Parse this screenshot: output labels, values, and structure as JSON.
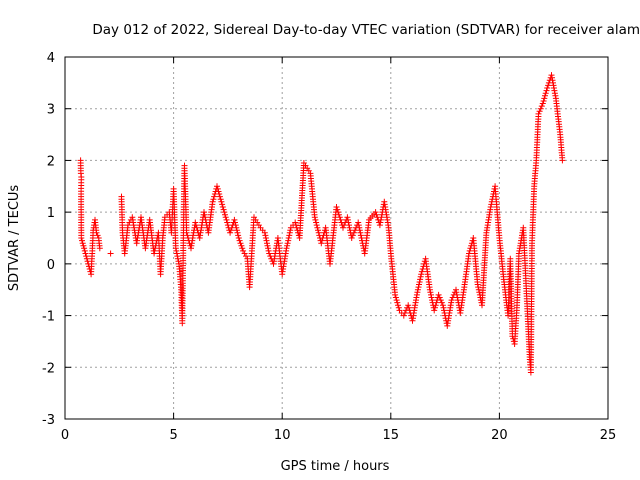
{
  "chart_data": {
    "type": "scatter",
    "title": "Day 012 of 2022, Sidereal Day-to-day VTEC variation (SDTVAR) for receiver alam",
    "xlabel": "GPS time / hours",
    "ylabel": "SDTVAR / TECUs",
    "xlim": [
      0,
      25
    ],
    "ylim": [
      -3,
      4
    ],
    "x_ticks": [
      0,
      5,
      10,
      15,
      20,
      25
    ],
    "x_tick_labels": [
      "0",
      "5",
      "10",
      "15",
      "20",
      "25"
    ],
    "y_ticks": [
      -3,
      -2,
      -1,
      0,
      1,
      2,
      3,
      4
    ],
    "y_tick_labels": [
      "-3",
      "-2",
      "-1",
      "0",
      "1",
      "2",
      "3",
      "4"
    ],
    "grid": true,
    "marker": "+",
    "marker_color": "#ff0000",
    "axis_color": "#000000",
    "grid_color": "#a0a0a0",
    "series": [
      {
        "name": "SDTVAR",
        "trace": [
          [
            0.72,
            2.0
          ],
          [
            0.73,
            1.75
          ],
          [
            0.75,
            1.68
          ],
          [
            0.74,
            1.35
          ],
          [
            0.75,
            0.5
          ],
          [
            1.2,
            -0.2
          ],
          [
            1.25,
            0.2
          ],
          [
            1.3,
            0.65
          ],
          [
            1.38,
            0.85
          ],
          [
            1.45,
            0.6
          ],
          [
            1.55,
            0.5
          ],
          [
            1.6,
            0.3
          ],
          [
            2.1,
            0.2
          ],
          [
            2.6,
            1.3
          ],
          [
            2.65,
            0.6
          ],
          [
            2.75,
            0.2
          ],
          [
            2.9,
            0.75
          ],
          [
            3.1,
            0.9
          ],
          [
            3.3,
            0.4
          ],
          [
            3.5,
            0.9
          ],
          [
            3.7,
            0.3
          ],
          [
            3.9,
            0.85
          ],
          [
            4.1,
            0.2
          ],
          [
            4.3,
            0.6
          ],
          [
            4.4,
            -0.2
          ],
          [
            4.5,
            0.5
          ],
          [
            4.6,
            0.9
          ],
          [
            4.8,
            1.0
          ],
          [
            4.9,
            0.6
          ],
          [
            5.0,
            1.45
          ],
          [
            5.1,
            0.3
          ],
          [
            5.25,
            0.0
          ],
          [
            5.35,
            -0.5
          ],
          [
            5.4,
            -1.15
          ],
          [
            5.45,
            0.5
          ],
          [
            5.5,
            1.9
          ],
          [
            5.6,
            0.6
          ],
          [
            5.8,
            0.3
          ],
          [
            6.0,
            0.8
          ],
          [
            6.2,
            0.5
          ],
          [
            6.4,
            1.0
          ],
          [
            6.6,
            0.6
          ],
          [
            6.8,
            1.2
          ],
          [
            7.0,
            1.5
          ],
          [
            7.2,
            1.2
          ],
          [
            7.4,
            0.9
          ],
          [
            7.6,
            0.6
          ],
          [
            7.8,
            0.85
          ],
          [
            8.0,
            0.5
          ],
          [
            8.2,
            0.25
          ],
          [
            8.4,
            0.1
          ],
          [
            8.5,
            -0.45
          ],
          [
            8.7,
            0.9
          ],
          [
            9.0,
            0.7
          ],
          [
            9.2,
            0.6
          ],
          [
            9.4,
            0.2
          ],
          [
            9.6,
            0.0
          ],
          [
            9.8,
            0.5
          ],
          [
            10.0,
            -0.2
          ],
          [
            10.2,
            0.3
          ],
          [
            10.4,
            0.7
          ],
          [
            10.6,
            0.8
          ],
          [
            10.8,
            0.5
          ],
          [
            11.0,
            1.95
          ],
          [
            11.3,
            1.75
          ],
          [
            11.5,
            0.9
          ],
          [
            11.8,
            0.4
          ],
          [
            12.0,
            0.7
          ],
          [
            12.2,
            0.0
          ],
          [
            12.5,
            1.1
          ],
          [
            12.8,
            0.7
          ],
          [
            13.0,
            0.9
          ],
          [
            13.2,
            0.5
          ],
          [
            13.5,
            0.8
          ],
          [
            13.8,
            0.2
          ],
          [
            14.0,
            0.85
          ],
          [
            14.3,
            1.0
          ],
          [
            14.5,
            0.75
          ],
          [
            14.7,
            1.2
          ],
          [
            14.9,
            0.7
          ],
          [
            15.0,
            0.2
          ],
          [
            15.2,
            -0.6
          ],
          [
            15.4,
            -0.9
          ],
          [
            15.6,
            -1.0
          ],
          [
            15.8,
            -0.8
          ],
          [
            16.0,
            -1.1
          ],
          [
            16.2,
            -0.6
          ],
          [
            16.4,
            -0.2
          ],
          [
            16.6,
            0.1
          ],
          [
            16.8,
            -0.5
          ],
          [
            17.0,
            -0.9
          ],
          [
            17.2,
            -0.6
          ],
          [
            17.4,
            -0.8
          ],
          [
            17.6,
            -1.2
          ],
          [
            17.8,
            -0.7
          ],
          [
            18.0,
            -0.5
          ],
          [
            18.2,
            -0.95
          ],
          [
            18.4,
            -0.4
          ],
          [
            18.6,
            0.2
          ],
          [
            18.8,
            0.5
          ],
          [
            19.0,
            -0.4
          ],
          [
            19.2,
            -0.8
          ],
          [
            19.4,
            0.6
          ],
          [
            19.6,
            1.1
          ],
          [
            19.8,
            1.5
          ],
          [
            20.0,
            0.5
          ],
          [
            20.2,
            -0.3
          ],
          [
            20.4,
            -1.0
          ],
          [
            20.5,
            0.1
          ],
          [
            20.6,
            -1.4
          ],
          [
            20.7,
            -1.55
          ],
          [
            20.8,
            -0.9
          ],
          [
            20.9,
            0.2
          ],
          [
            21.1,
            0.7
          ],
          [
            21.4,
            -1.85
          ],
          [
            21.45,
            -2.1
          ],
          [
            21.5,
            0.4
          ],
          [
            21.6,
            1.5
          ],
          [
            21.7,
            2.0
          ],
          [
            21.8,
            2.9
          ],
          [
            22.0,
            3.1
          ],
          [
            22.2,
            3.4
          ],
          [
            22.4,
            3.65
          ],
          [
            22.6,
            3.2
          ],
          [
            22.8,
            2.5
          ],
          [
            22.9,
            2.0
          ]
        ]
      }
    ]
  }
}
